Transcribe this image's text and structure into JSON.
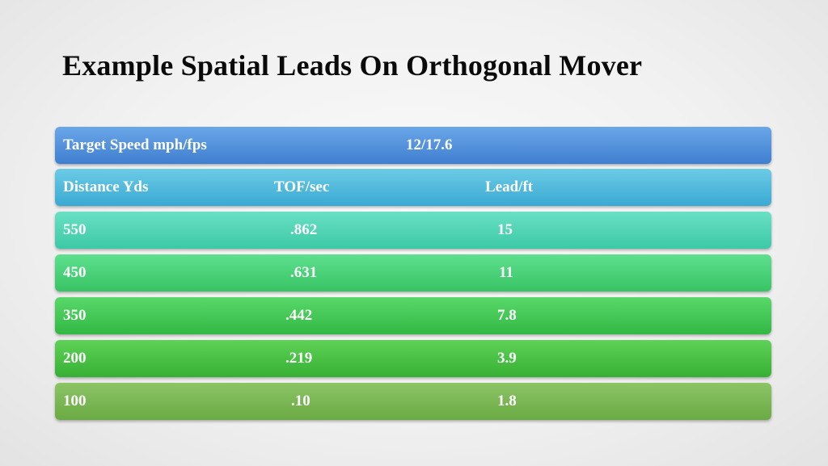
{
  "title": "Example Spatial Leads On Orthogonal Mover",
  "table": {
    "target_label": "Target Speed mph/fps",
    "target_value": "12/17.6",
    "headers": [
      "Distance Yds",
      "TOF/sec",
      "Lead/ft"
    ],
    "rows": [
      [
        "550",
        ".862",
        "15"
      ],
      [
        "450",
        ".631",
        "11"
      ],
      [
        "350",
        ".442",
        "7.8"
      ],
      [
        "200",
        ".219",
        "3.9"
      ],
      [
        "100",
        ".10",
        "1.8"
      ]
    ]
  },
  "colors": {
    "title_text": "#0a0a0a",
    "cell_text": "#ffffff",
    "target_row": "#4a8ad8",
    "header_row": "#45b2d9",
    "row_550": "#48d0b0",
    "row_450": "#44cc74",
    "row_350": "#3ec452",
    "row_200": "#40ba3c",
    "row_100": "#78b552"
  }
}
